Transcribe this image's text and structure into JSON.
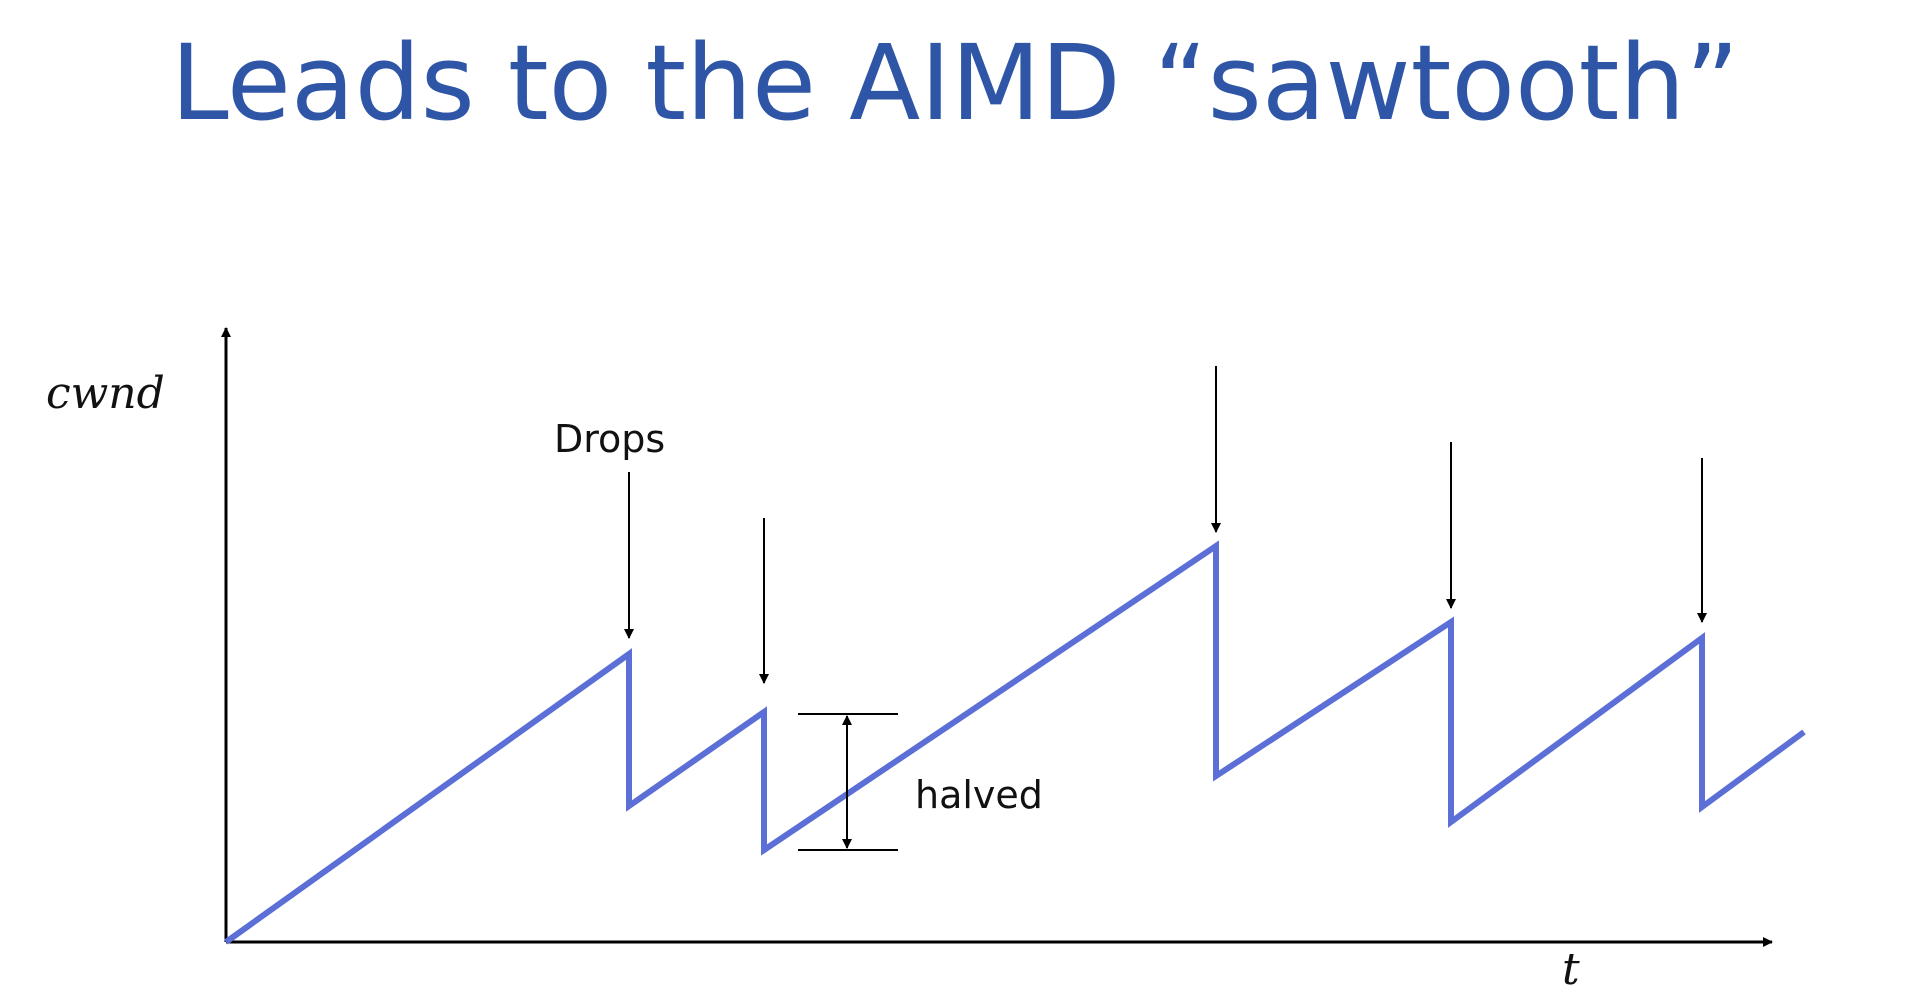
{
  "slide": {
    "title": "Leads to the AIMD “sawtooth”"
  },
  "diagram": {
    "y_axis_label": "cwnd",
    "x_axis_label": "t",
    "drops_label": "Drops",
    "halved_label": "halved",
    "colors": {
      "title": "#2f56a6",
      "curve": "#5b6fd6",
      "axis": "#000000"
    }
  }
}
